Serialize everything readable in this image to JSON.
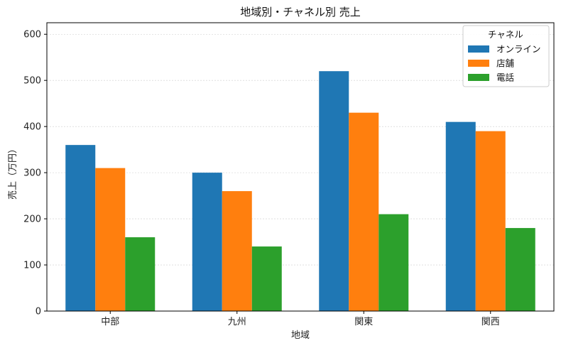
{
  "chart_data": {
    "type": "bar",
    "title": "地域別・チャネル別 売上",
    "xlabel": "地域",
    "ylabel": "売上（万円）",
    "categories": [
      "中部",
      "九州",
      "関東",
      "関西"
    ],
    "series": [
      {
        "name": "オンライン",
        "values": [
          360,
          300,
          520,
          410
        ],
        "color": "#1f77b4"
      },
      {
        "name": "店舗",
        "values": [
          310,
          260,
          430,
          390
        ],
        "color": "#ff7f0e"
      },
      {
        "name": "電話",
        "values": [
          160,
          140,
          210,
          180
        ],
        "color": "#2ca02c"
      }
    ],
    "ylim": [
      0,
      625
    ],
    "yticks": [
      0,
      100,
      200,
      300,
      400,
      500,
      600
    ],
    "grid": true,
    "legend": {
      "title": "チャネル",
      "placement": "top-right"
    }
  }
}
